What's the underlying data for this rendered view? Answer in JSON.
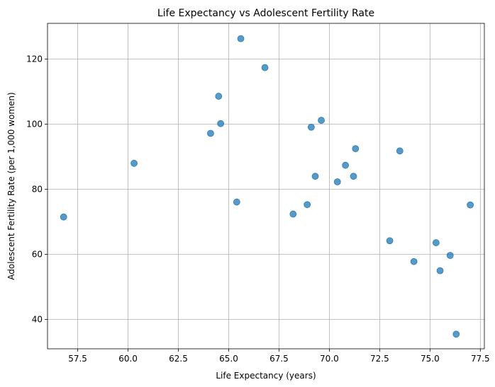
{
  "chart_data": {
    "type": "scatter",
    "title": "Life Expectancy vs Adolescent Fertility Rate",
    "xlabel": "Life Expectancy (years)",
    "ylabel": "Adolescent Fertility Rate (per 1,000 women)",
    "xlim": [
      56.0,
      77.7
    ],
    "ylim": [
      31.0,
      131.0
    ],
    "xticks": [
      57.5,
      60.0,
      62.5,
      65.0,
      67.5,
      70.0,
      72.5,
      75.0,
      77.5
    ],
    "xtick_labels": [
      "57.5",
      "60.0",
      "62.5",
      "65.0",
      "67.5",
      "70.0",
      "72.5",
      "75.0",
      "77.5"
    ],
    "yticks": [
      40,
      60,
      80,
      100,
      120
    ],
    "ytick_labels": [
      "40",
      "60",
      "80",
      "100",
      "120"
    ],
    "grid": true,
    "marker_color": "#1f77b4",
    "points": [
      {
        "x": 56.8,
        "y": 71.5
      },
      {
        "x": 60.3,
        "y": 88.0
      },
      {
        "x": 64.1,
        "y": 97.2
      },
      {
        "x": 64.5,
        "y": 108.6
      },
      {
        "x": 64.6,
        "y": 100.2
      },
      {
        "x": 65.4,
        "y": 76.1
      },
      {
        "x": 65.6,
        "y": 126.3
      },
      {
        "x": 66.8,
        "y": 117.4
      },
      {
        "x": 68.2,
        "y": 72.4
      },
      {
        "x": 68.9,
        "y": 75.3
      },
      {
        "x": 69.1,
        "y": 99.1
      },
      {
        "x": 69.3,
        "y": 84.0
      },
      {
        "x": 69.6,
        "y": 101.2
      },
      {
        "x": 70.4,
        "y": 82.3
      },
      {
        "x": 70.8,
        "y": 87.4
      },
      {
        "x": 71.2,
        "y": 84.0
      },
      {
        "x": 71.3,
        "y": 92.5
      },
      {
        "x": 73.0,
        "y": 64.2
      },
      {
        "x": 73.5,
        "y": 91.8
      },
      {
        "x": 74.2,
        "y": 57.8
      },
      {
        "x": 75.3,
        "y": 63.6
      },
      {
        "x": 75.5,
        "y": 55.0
      },
      {
        "x": 76.0,
        "y": 59.7
      },
      {
        "x": 76.3,
        "y": 35.5
      },
      {
        "x": 77.0,
        "y": 75.2
      }
    ]
  }
}
